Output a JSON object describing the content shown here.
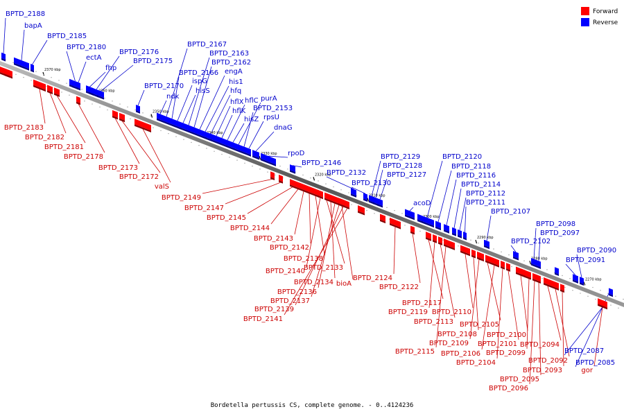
{
  "caption": "Bordetella pertussis CS, complete genome. - 0..4124236",
  "legend": [
    {
      "label": "Forward",
      "color": "#ff0000"
    },
    {
      "label": "Reverse",
      "color": "#0000ff"
    }
  ],
  "ticks": [
    "2370 kbp",
    "2360 kbp",
    "2350 kbp",
    "2340 kbp",
    "2330 kbp",
    "2320 kbp",
    "2310 kbp",
    "2300 kbp",
    "2290 kbp",
    "2280 kbp",
    "2270 kbp"
  ],
  "reverse_genes": [
    "BPTD_2188",
    "bapA",
    "BPTD_2185",
    "BPTD_2180",
    "ectA",
    "fhp",
    "BPTD_2176",
    "BPTD_2175",
    "BPTD_2170",
    "ndk",
    "BPTD_2167",
    "BPTD_2166",
    "ispG",
    "hisS",
    "BPTD_2163",
    "BPTD_2162",
    "engA",
    "his1",
    "hfq",
    "hflX",
    "hflK",
    "hflC",
    "hisZ",
    "purA",
    "BPTD_2153",
    "rpsU",
    "dnaG",
    "rpoD",
    "BPTD_2146",
    "BPTD_2132",
    "BPTD_2130",
    "BPTD_2129",
    "BPTD_2128",
    "BPTD_2127",
    "acoD",
    "BPTD_2120",
    "BPTD_2118",
    "BPTD_2116",
    "BPTD_2114",
    "BPTD_2112",
    "BPTD_2111",
    "BPTD_2107",
    "BPTD_2102",
    "BPTD_2098",
    "BPTD_2097",
    "BPTD_2091",
    "BPTD_2090",
    "BPTD_2087",
    "BPTD_2085"
  ],
  "forward_genes": [
    "BPTD_2183",
    "BPTD_2182",
    "BPTD_2181",
    "BPTD_2178",
    "BPTD_2173",
    "BPTD_2172",
    "valS",
    "BPTD_2149",
    "BPTD_2147",
    "BPTD_2145",
    "BPTD_2144",
    "BPTD_2143",
    "BPTD_2142",
    "BPTD_2138",
    "BPTD_2140",
    "BPTD_2133",
    "BPTD_2134",
    "BPTD_2136",
    "BPTD_2137",
    "BPTD_2139",
    "BPTD_2141",
    "bioA",
    "BPTD_2124",
    "BPTD_2122",
    "BPTD_2117",
    "BPTD_2119",
    "BPTD_2110",
    "BPTD_2113",
    "BPTD_2108",
    "BPTD_2105",
    "BPTD_2109",
    "BPTD_2115",
    "BPTD_2106",
    "BPTD_2104",
    "BPTD_2101",
    "BPTD_2100",
    "BPTD_2099",
    "BPTD_2094",
    "BPTD_2092",
    "BPTD_2093",
    "BPTD_2095",
    "BPTD_2096",
    "gor"
  ]
}
